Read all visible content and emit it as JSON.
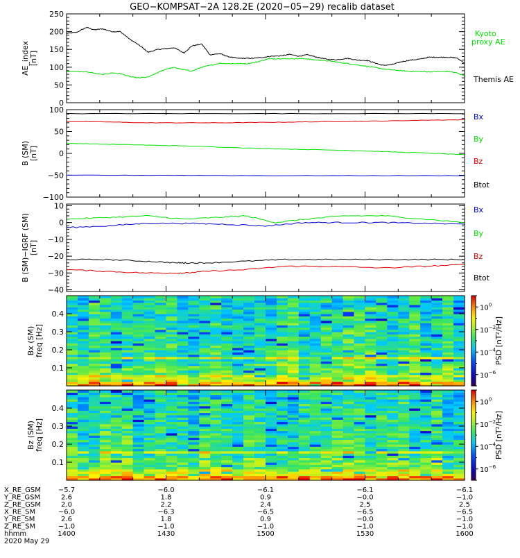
{
  "title": "GEO−KOMPSAT−2A 128.2E (2020−05−29) recalib dataset",
  "colors": {
    "black": "#000000",
    "green": "#00e000",
    "red": "#e00000",
    "blue": "#0000d0"
  },
  "chart_data": [
    {
      "type": "line",
      "id": "ae",
      "ylabel": "AE_index",
      "yunit": "[nT]",
      "ylim": [
        0,
        250
      ],
      "yticks": [
        0,
        50,
        100,
        150,
        200,
        250
      ],
      "xlim": [
        1400,
        1600
      ],
      "legend": [
        {
          "name": "Kyoto proxy AE",
          "lines": [
            "Kyoto",
            "proxy AE"
          ],
          "color": "#00e000"
        },
        {
          "name": "Themis AE",
          "lines": [
            "Themis AE"
          ],
          "color": "#000000"
        }
      ],
      "series": [
        {
          "name": "Themis AE",
          "color": "#000000",
          "x": [
            1400,
            1405,
            1410,
            1414,
            1418,
            1423,
            1427,
            1432,
            1437,
            1441,
            1446,
            1450,
            1454,
            1459,
            1463,
            1468,
            1472,
            1477,
            1481,
            1486,
            1490,
            1494,
            1499,
            1503,
            1508,
            1512,
            1517,
            1521,
            1526,
            1531,
            1536,
            1541,
            1546,
            1551,
            1555,
            1559,
            1564,
            1568,
            1573,
            1578,
            1582,
            1587,
            1592,
            1596,
            1600
          ],
          "y": [
            195,
            198,
            212,
            205,
            208,
            200,
            200,
            178,
            160,
            142,
            150,
            152,
            155,
            140,
            160,
            165,
            135,
            138,
            130,
            125,
            125,
            125,
            128,
            131,
            132,
            136,
            131,
            135,
            128,
            122,
            121,
            125,
            120,
            119,
            112,
            105,
            108,
            115,
            120,
            123,
            128,
            128,
            128,
            126,
            112
          ]
        },
        {
          "name": "Kyoto proxy AE",
          "color": "#00e000",
          "x": [
            1400,
            1410,
            1418,
            1423,
            1427,
            1432,
            1436,
            1441,
            1446,
            1450,
            1454,
            1459,
            1463,
            1468,
            1472,
            1477,
            1481,
            1486,
            1491,
            1496,
            1501,
            1506,
            1510,
            1515,
            1520,
            1524,
            1529,
            1534,
            1539,
            1544,
            1549,
            1554,
            1559,
            1564,
            1568,
            1573,
            1578,
            1582,
            1587,
            1592,
            1596,
            1600
          ],
          "y": [
            88,
            87,
            79,
            84,
            82,
            73,
            70,
            72,
            85,
            95,
            99,
            93,
            89,
            100,
            105,
            111,
            110,
            110,
            110,
            115,
            123,
            124,
            124,
            124,
            124,
            121,
            119,
            116,
            112,
            108,
            104,
            100,
            95,
            92,
            90,
            88,
            88,
            87,
            88,
            88,
            84,
            76
          ]
        }
      ]
    },
    {
      "type": "line",
      "id": "bsm",
      "ylabel": "B (SM)",
      "yunit": "[nT]",
      "ylim": [
        -100,
        100
      ],
      "yticks": [
        -100,
        -50,
        0,
        50,
        100
      ],
      "xlim": [
        1400,
        1600
      ],
      "legend": [
        {
          "name": "Bx",
          "color": "#0000d0"
        },
        {
          "name": "By",
          "color": "#00e000"
        },
        {
          "name": "Bz",
          "color": "#e00000"
        },
        {
          "name": "Btot",
          "color": "#000000"
        }
      ],
      "series": [
        {
          "name": "Btot",
          "color": "#000000",
          "x": [
            1400,
            1450,
            1500,
            1550,
            1600
          ],
          "y": [
            91,
            91,
            91,
            91,
            91
          ]
        },
        {
          "name": "Bz",
          "color": "#e00000",
          "x": [
            1400,
            1420,
            1440,
            1460,
            1480,
            1500,
            1520,
            1540,
            1560,
            1580,
            1600
          ],
          "y": [
            73,
            72,
            70,
            70,
            70,
            71,
            72,
            73,
            74,
            76,
            77
          ]
        },
        {
          "name": "By",
          "color": "#00e000",
          "x": [
            1400,
            1420,
            1440,
            1460,
            1480,
            1500,
            1520,
            1540,
            1560,
            1580,
            1600
          ],
          "y": [
            23,
            21,
            19,
            17,
            14,
            11,
            9,
            7,
            4,
            1,
            -3
          ]
        },
        {
          "name": "Bx",
          "color": "#0000d0",
          "x": [
            1400,
            1450,
            1500,
            1550,
            1600
          ],
          "y": [
            -50,
            -50,
            -51,
            -51,
            -51
          ]
        }
      ]
    },
    {
      "type": "line",
      "id": "bsm_igrf",
      "ylabel": "B (SM)−IGRF (SM)",
      "yunit": "[nT]",
      "ylim": [
        -41,
        11
      ],
      "yticks": [
        -40,
        -30,
        -20,
        -10,
        0,
        10
      ],
      "xlim": [
        1400,
        1600
      ],
      "legend": [
        {
          "name": "Bx",
          "color": "#0000d0"
        },
        {
          "name": "By",
          "color": "#00e000"
        },
        {
          "name": "Bz",
          "color": "#e00000"
        },
        {
          "name": "Btot",
          "color": "#000000"
        }
      ],
      "series": [
        {
          "name": "By",
          "color": "#00e000",
          "x": [
            1400,
            1420,
            1440,
            1460,
            1475,
            1490,
            1505,
            1520,
            1540,
            1560,
            1580,
            1600
          ],
          "y": [
            2,
            3,
            4,
            2,
            3,
            4,
            0,
            2,
            4,
            4,
            2,
            0
          ]
        },
        {
          "name": "Bx",
          "color": "#0000d0",
          "x": [
            1400,
            1420,
            1440,
            1460,
            1480,
            1500,
            1520,
            1540,
            1560,
            1580,
            1600
          ],
          "y": [
            -3,
            -2,
            -0.5,
            -0.5,
            -1,
            -2,
            0,
            0,
            0,
            -0.5,
            -1
          ]
        },
        {
          "name": "Btot",
          "color": "#000000",
          "x": [
            1400,
            1420,
            1440,
            1456,
            1460,
            1470,
            1490,
            1510,
            1530,
            1560,
            1580,
            1600
          ],
          "y": [
            -22,
            -22,
            -23,
            -24,
            -24,
            -24,
            -23,
            -22,
            -22,
            -22,
            -22,
            -22
          ]
        },
        {
          "name": "Bz",
          "color": "#e00000",
          "x": [
            1400,
            1420,
            1440,
            1456,
            1460,
            1470,
            1490,
            1510,
            1530,
            1560,
            1580,
            1600
          ],
          "y": [
            -28,
            -29,
            -30,
            -30,
            -30,
            -29,
            -28,
            -26,
            -26,
            -27,
            -26,
            -25
          ]
        }
      ]
    },
    {
      "type": "heatmap",
      "id": "bx_spec",
      "ylabel": "Bx (SM)",
      "yunit": "freq [Hz]",
      "ylim": [
        0.0,
        0.5
      ],
      "yticks": [
        0.1,
        0.2,
        0.3,
        0.4
      ],
      "xlim": [
        1400,
        1600
      ],
      "colorbar": {
        "label": "PSD",
        "unit": "[nT²/Hz]",
        "ticks": [
          {
            "base": "10",
            "exp": "0"
          },
          {
            "base": "10",
            "exp": "−2"
          },
          {
            "base": "10",
            "exp": "−4"
          },
          {
            "base": "10",
            "exp": "−6"
          }
        ],
        "log_range": [
          -7,
          1
        ]
      }
    },
    {
      "type": "heatmap",
      "id": "bz_spec",
      "ylabel": "Bz (SM)",
      "yunit": "freq [Hz]",
      "ylim": [
        0.0,
        0.5
      ],
      "yticks": [
        0.1,
        0.2,
        0.3,
        0.4
      ],
      "xlim": [
        1400,
        1600
      ],
      "colorbar": {
        "label": "PSD",
        "unit": "[nT²/Hz]",
        "ticks": [
          {
            "base": "10",
            "exp": "0"
          },
          {
            "base": "10",
            "exp": "−2"
          },
          {
            "base": "10",
            "exp": "−4"
          },
          {
            "base": "10",
            "exp": "−6"
          }
        ],
        "log_range": [
          -7,
          1
        ]
      }
    }
  ],
  "ephemeris": {
    "rows": [
      {
        "label": "X_RE_GSM",
        "values": [
          "−5.7",
          "−6.0",
          "−6.1",
          "−6.1",
          "−6.1"
        ]
      },
      {
        "label": "Y_RE_GSM",
        "values": [
          "2.6",
          "1.8",
          "0.9",
          "−0.0",
          "−1.0"
        ]
      },
      {
        "label": "Z_RE_GSM",
        "values": [
          "2.0",
          "2.2",
          "2.4",
          "2.5",
          "2.5"
        ]
      },
      {
        "label": "X_RE_SM",
        "values": [
          "−6.0",
          "−6.3",
          "−6.5",
          "−6.5",
          "−6.5"
        ]
      },
      {
        "label": "Y_RE_SM",
        "values": [
          "2.6",
          "1.8",
          "0.9",
          "−0.0",
          "−1.0"
        ]
      },
      {
        "label": "Z_RE_SM",
        "values": [
          "−1.0",
          "−1.0",
          "−1.0",
          "−1.0",
          "−1.0"
        ]
      },
      {
        "label": "hhmm",
        "values": [
          "1400",
          "1430",
          "1500",
          "1530",
          "1600"
        ]
      }
    ],
    "date": "2020 May 29"
  }
}
